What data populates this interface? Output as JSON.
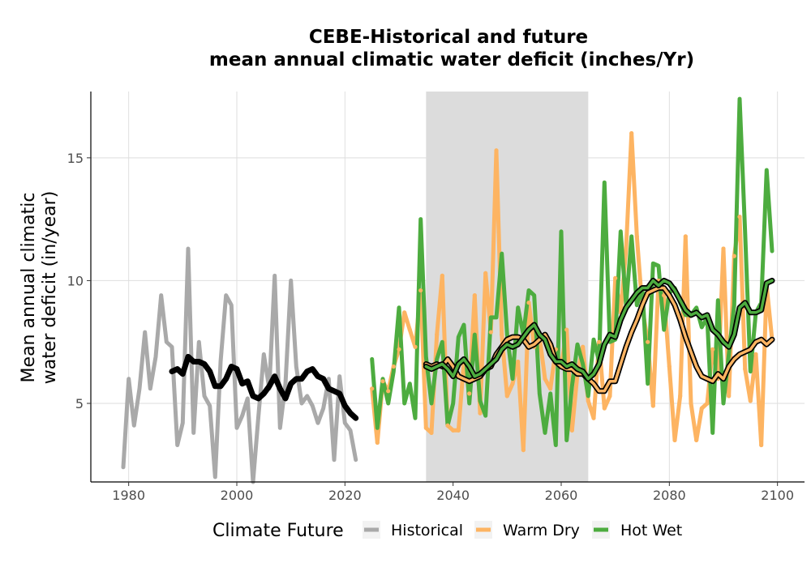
{
  "chart_data": {
    "type": "line",
    "title_line1": "CEBE-Historical and future",
    "title_line2": "mean annual climatic water deficit (inches/Yr)",
    "ylabel_line1": "Mean annual climatic",
    "ylabel_line2": "water deficit (in/year)",
    "xlabel": "",
    "xlim": [
      1973,
      2105
    ],
    "ylim": [
      1.8,
      17.7
    ],
    "x_ticks": [
      1980,
      2000,
      2020,
      2040,
      2060,
      2080,
      2100
    ],
    "y_ticks": [
      5,
      10,
      15
    ],
    "grid": true,
    "shaded_period": [
      2035,
      2065
    ],
    "legend": {
      "title": "Climate Future",
      "position": "bottom",
      "items": [
        {
          "label": "Historical",
          "color": "#A9A9A9"
        },
        {
          "label": "Warm Dry",
          "color": "#FDB462"
        },
        {
          "label": "Hot Wet",
          "color": "#4DAC3F"
        }
      ]
    },
    "series": [
      {
        "name": "Historical",
        "color": "#A9A9A9",
        "x": [
          1979,
          1980,
          1981,
          1982,
          1983,
          1984,
          1985,
          1986,
          1987,
          1988,
          1989,
          1990,
          1991,
          1992,
          1993,
          1994,
          1995,
          1996,
          1997,
          1998,
          1999,
          2000,
          2001,
          2002,
          2003,
          2004,
          2005,
          2006,
          2007,
          2008,
          2009,
          2010,
          2011,
          2012,
          2013,
          2014,
          2015,
          2016,
          2017,
          2018,
          2019,
          2020,
          2021,
          2022
        ],
        "values": [
          2.4,
          6.0,
          4.1,
          5.6,
          7.9,
          5.6,
          6.9,
          9.4,
          7.5,
          7.3,
          3.3,
          4.2,
          11.3,
          3.8,
          7.5,
          5.3,
          4.9,
          2.0,
          6.7,
          9.4,
          9.0,
          4.0,
          4.5,
          5.2,
          1.8,
          4.5,
          7.0,
          5.6,
          10.2,
          4.0,
          5.8,
          10.0,
          6.5,
          5.0,
          5.3,
          4.9,
          4.2,
          4.8,
          6.0,
          2.7,
          6.1,
          4.2,
          3.9,
          2.7
        ]
      },
      {
        "name": "Historical rolling mean",
        "color": "#000000",
        "x": [
          1988,
          1989,
          1990,
          1991,
          1992,
          1993,
          1994,
          1995,
          1996,
          1997,
          1998,
          1999,
          2000,
          2001,
          2002,
          2003,
          2004,
          2005,
          2006,
          2007,
          2008,
          2009,
          2010,
          2011,
          2012,
          2013,
          2014,
          2015,
          2016,
          2017,
          2018,
          2019,
          2020,
          2021,
          2022
        ],
        "values": [
          6.3,
          6.4,
          6.2,
          6.9,
          6.7,
          6.7,
          6.6,
          6.3,
          5.7,
          5.7,
          6.0,
          6.5,
          6.4,
          5.8,
          5.9,
          5.3,
          5.2,
          5.4,
          5.7,
          6.1,
          5.6,
          5.2,
          5.8,
          6.0,
          6.0,
          6.3,
          6.4,
          6.1,
          6.0,
          5.6,
          5.5,
          5.4,
          4.9,
          4.6,
          4.4
        ]
      },
      {
        "name": "Hot Wet",
        "color": "#4DAC3F",
        "x": [
          2025,
          2026,
          2027,
          2028,
          2029,
          2030,
          2031,
          2032,
          2033,
          2034,
          2035,
          2036,
          2037,
          2038,
          2039,
          2040,
          2041,
          2042,
          2043,
          2044,
          2045,
          2046,
          2047,
          2048,
          2049,
          2050,
          2051,
          2052,
          2053,
          2054,
          2055,
          2056,
          2057,
          2058,
          2059,
          2060,
          2061,
          2062,
          2063,
          2064,
          2065,
          2066,
          2067,
          2068,
          2069,
          2070,
          2071,
          2072,
          2073,
          2074,
          2075,
          2076,
          2077,
          2078,
          2079,
          2080,
          2081,
          2082,
          2083,
          2084,
          2085,
          2086,
          2087,
          2088,
          2089,
          2090,
          2091,
          2092,
          2093,
          2094,
          2095,
          2096,
          2097,
          2098,
          2099
        ],
        "values": [
          6.8,
          4.0,
          6.0,
          5.0,
          6.3,
          8.9,
          5.0,
          5.8,
          4.4,
          12.5,
          6.9,
          5.0,
          6.8,
          7.5,
          4.1,
          5.0,
          7.7,
          8.2,
          5.0,
          7.8,
          5.1,
          4.5,
          8.5,
          8.5,
          11.1,
          7.8,
          6.0,
          8.9,
          7.8,
          9.6,
          9.4,
          5.4,
          3.8,
          5.4,
          3.3,
          12.0,
          3.5,
          5.7,
          7.4,
          6.6,
          5.3,
          7.6,
          6.7,
          14.0,
          7.5,
          7.6,
          12.0,
          9.0,
          11.8,
          9.0,
          9.7,
          5.8,
          10.7,
          10.6,
          8.0,
          9.5,
          9.7,
          9.1,
          8.6,
          8.6,
          8.9,
          8.1,
          8.5,
          3.8,
          9.2,
          5.0,
          7.0,
          9.0,
          17.4,
          12.0,
          6.3,
          8.7,
          9.1,
          14.5,
          11.2
        ]
      },
      {
        "name": "Warm Dry",
        "color": "#FDB462",
        "x": [
          2025,
          2026,
          2027,
          2028,
          2029,
          2030,
          2031,
          2032,
          2033,
          2034,
          2035,
          2036,
          2037,
          2038,
          2039,
          2040,
          2041,
          2042,
          2043,
          2044,
          2045,
          2046,
          2047,
          2048,
          2049,
          2050,
          2051,
          2052,
          2053,
          2054,
          2055,
          2056,
          2057,
          2058,
          2059,
          2060,
          2061,
          2062,
          2063,
          2064,
          2065,
          2066,
          2067,
          2068,
          2069,
          2070,
          2071,
          2072,
          2073,
          2074,
          2075,
          2076,
          2077,
          2078,
          2079,
          2080,
          2081,
          2082,
          2083,
          2084,
          2085,
          2086,
          2087,
          2088,
          2089,
          2090,
          2091,
          2092,
          2093,
          2094,
          2095,
          2096,
          2097,
          2098,
          2099
        ],
        "values": [
          5.6,
          3.4,
          5.9,
          5.5,
          6.5,
          7.2,
          8.7,
          8.0,
          7.3,
          9.6,
          4.0,
          3.8,
          7.8,
          10.2,
          4.1,
          3.9,
          3.9,
          6.7,
          5.4,
          9.4,
          4.6,
          10.3,
          7.9,
          15.3,
          7.8,
          5.3,
          5.8,
          6.7,
          3.1,
          9.1,
          7.3,
          7.7,
          6.0,
          5.6,
          7.2,
          6.5,
          8.0,
          3.9,
          6.2,
          7.3,
          5.1,
          4.4,
          7.5,
          4.8,
          5.3,
          10.1,
          8.7,
          11.3,
          16.0,
          11.8,
          8.9,
          7.5,
          4.9,
          10.0,
          9.4,
          6.5,
          3.5,
          5.3,
          11.8,
          5.0,
          3.5,
          4.8,
          5.0,
          7.2,
          6.0,
          11.3,
          5.3,
          11.0,
          12.6,
          6.4,
          5.1,
          7.0,
          3.3,
          9.8,
          7.6
        ]
      },
      {
        "name": "Hot Wet rolling mean",
        "color": "#4DAC3F",
        "x": [
          2035,
          2036,
          2037,
          2038,
          2039,
          2040,
          2041,
          2042,
          2043,
          2044,
          2045,
          2046,
          2047,
          2048,
          2049,
          2050,
          2051,
          2052,
          2053,
          2054,
          2055,
          2056,
          2057,
          2058,
          2059,
          2060,
          2061,
          2062,
          2063,
          2064,
          2065,
          2066,
          2067,
          2068,
          2069,
          2070,
          2071,
          2072,
          2073,
          2074,
          2075,
          2076,
          2077,
          2078,
          2079,
          2080,
          2081,
          2082,
          2083,
          2084,
          2085,
          2086,
          2087,
          2088,
          2089,
          2090,
          2091,
          2092,
          2093,
          2094,
          2095,
          2096,
          2097,
          2098,
          2099
        ],
        "values": [
          6.5,
          6.4,
          6.5,
          6.6,
          6.4,
          6.1,
          6.6,
          6.8,
          6.5,
          6.1,
          6.2,
          6.4,
          6.6,
          6.8,
          7.2,
          7.4,
          7.3,
          7.4,
          7.7,
          8.0,
          8.2,
          7.8,
          7.6,
          7.0,
          6.7,
          6.7,
          6.5,
          6.6,
          6.4,
          6.3,
          6.0,
          6.2,
          6.6,
          7.4,
          7.8,
          7.7,
          8.4,
          8.9,
          9.2,
          9.5,
          9.7,
          9.7,
          10.0,
          9.8,
          10.0,
          9.9,
          9.6,
          9.2,
          8.8,
          8.6,
          8.7,
          8.5,
          8.6,
          8.0,
          7.8,
          7.5,
          7.3,
          7.8,
          8.9,
          9.1,
          8.7,
          8.7,
          8.8,
          9.9,
          10.0
        ]
      },
      {
        "name": "Warm Dry rolling mean",
        "color": "#FDB462",
        "x": [
          2035,
          2036,
          2037,
          2038,
          2039,
          2040,
          2041,
          2042,
          2043,
          2044,
          2045,
          2046,
          2047,
          2048,
          2049,
          2050,
          2051,
          2052,
          2053,
          2054,
          2055,
          2056,
          2057,
          2058,
          2059,
          2060,
          2061,
          2062,
          2063,
          2064,
          2065,
          2066,
          2067,
          2068,
          2069,
          2070,
          2071,
          2072,
          2073,
          2074,
          2075,
          2076,
          2077,
          2078,
          2079,
          2080,
          2081,
          2082,
          2083,
          2084,
          2085,
          2086,
          2087,
          2088,
          2089,
          2090,
          2091,
          2092,
          2093,
          2094,
          2095,
          2096,
          2097,
          2098,
          2099
        ],
        "values": [
          6.6,
          6.5,
          6.6,
          6.5,
          6.8,
          6.5,
          6.1,
          6.0,
          5.9,
          6.0,
          6.1,
          6.4,
          6.5,
          7.0,
          7.3,
          7.6,
          7.7,
          7.7,
          7.6,
          7.3,
          7.4,
          7.6,
          7.8,
          7.4,
          6.7,
          6.5,
          6.4,
          6.4,
          6.2,
          6.2,
          6.0,
          5.8,
          5.5,
          5.5,
          5.9,
          5.9,
          6.6,
          7.3,
          7.9,
          8.4,
          9.0,
          9.5,
          9.6,
          9.7,
          9.7,
          9.4,
          9.0,
          8.4,
          7.7,
          7.1,
          6.5,
          6.1,
          6.0,
          5.9,
          6.2,
          6.0,
          6.5,
          6.8,
          7.0,
          7.1,
          7.2,
          7.5,
          7.6,
          7.4,
          7.6
        ]
      }
    ]
  }
}
